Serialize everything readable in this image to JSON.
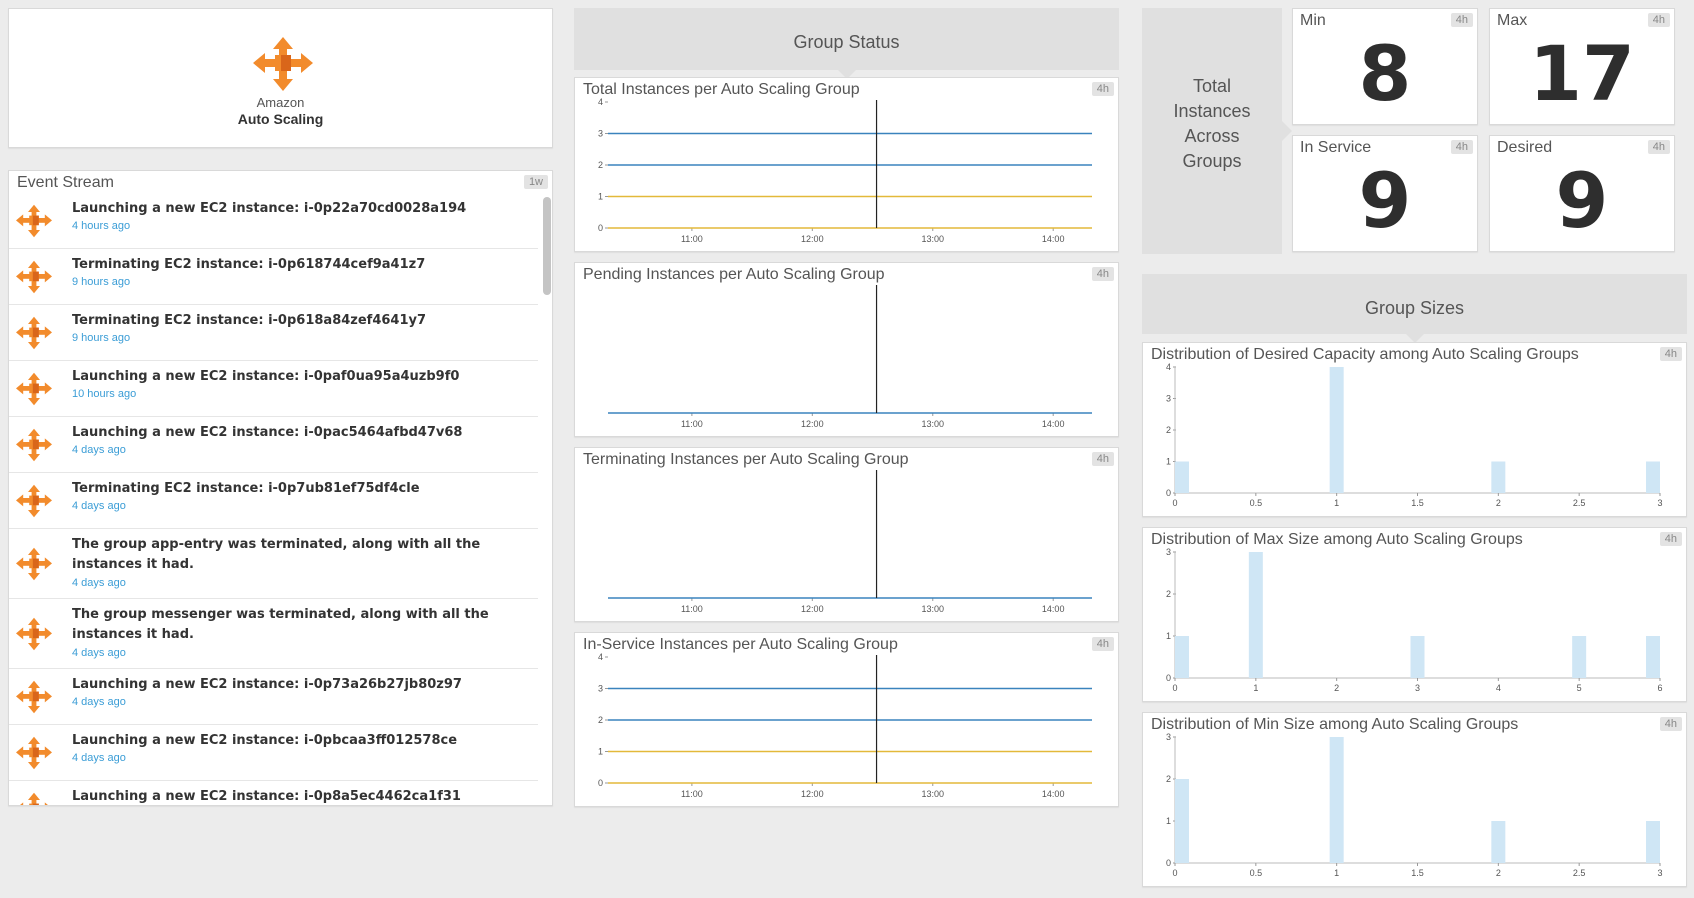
{
  "logo": {
    "line1": "Amazon",
    "line2": "Auto Scaling",
    "icon": "auto-scaling-arrows-icon"
  },
  "event_stream": {
    "title": "Event Stream",
    "badge": "1w",
    "events": [
      {
        "title": "Launching a new EC2 instance: i-0p22a70cd0028a194",
        "time": "4 hours ago"
      },
      {
        "title": "Terminating EC2 instance: i-0p618744cef9a41z7",
        "time": "9 hours ago"
      },
      {
        "title": "Terminating EC2 instance: i-0p618a84zef4641y7",
        "time": "9 hours ago"
      },
      {
        "title": "Launching a new EC2 instance: i-0paf0ua95a4uzb9f0",
        "time": "10 hours ago"
      },
      {
        "title": "Launching a new EC2 instance: i-0pac5464afbd47v68",
        "time": "4 days ago"
      },
      {
        "title": "Terminating EC2 instance: i-0p7ub81ef75df4cle",
        "time": "4 days ago"
      },
      {
        "title": "The group app-entry was terminated, along with all the instances it had.",
        "time": "4 days ago"
      },
      {
        "title": "The group messenger was terminated, along with all the instances it had.",
        "time": "4 days ago"
      },
      {
        "title": "Launching a new EC2 instance: i-0p73a26b27jb80z97",
        "time": "4 days ago"
      },
      {
        "title": "Launching a new EC2 instance: i-0pbcaa3ff012578ce",
        "time": "4 days ago"
      },
      {
        "title": "Launching a new EC2 instance: i-0p8a5ec4462ca1f31",
        "time": ""
      }
    ]
  },
  "group_status": {
    "title": "Group Status"
  },
  "total_instances": {
    "label": "Total Instances Across Groups",
    "stats": [
      {
        "label": "Min",
        "value": "8",
        "badge": "4h"
      },
      {
        "label": "Max",
        "value": "17",
        "badge": "4h"
      },
      {
        "label": "In Service",
        "value": "9",
        "badge": "4h"
      },
      {
        "label": "Desired",
        "value": "9",
        "badge": "4h"
      }
    ]
  },
  "group_sizes": {
    "title": "Group Sizes"
  },
  "colors": {
    "blue": "#3a83bd",
    "gold": "#e3b93a",
    "bar": "#cfe6f5",
    "cursor": "#222222",
    "link": "#3b9dd6"
  },
  "chart_data": [
    {
      "type": "line",
      "title": "Total Instances per Auto Scaling Group",
      "badge": "4h",
      "x_ticks": [
        "11:00",
        "12:00",
        "13:00",
        "14:00"
      ],
      "y_ticks": [
        "0",
        "1",
        "2",
        "3",
        "4"
      ],
      "ylim": [
        0,
        4
      ],
      "cursor": "12:32",
      "series": [
        {
          "values": [
            3,
            3,
            3,
            3
          ],
          "color": "#3a83bd"
        },
        {
          "values": [
            2,
            2,
            2,
            2
          ],
          "color": "#3a83bd"
        },
        {
          "values": [
            1,
            1,
            1,
            1
          ],
          "color": "#e3b93a"
        },
        {
          "values": [
            0,
            0,
            0,
            0
          ],
          "color": "#e3b93a"
        }
      ]
    },
    {
      "type": "line",
      "title": "Pending Instances per Auto Scaling Group",
      "badge": "4h",
      "x_ticks": [
        "11:00",
        "12:00",
        "13:00",
        "14:00"
      ],
      "y_ticks": [],
      "ylim": [
        0,
        4
      ],
      "cursor": "12:32",
      "series": [
        {
          "values": [
            0,
            0,
            0,
            0
          ],
          "color": "#3a83bd"
        }
      ]
    },
    {
      "type": "line",
      "title": "Terminating Instances per Auto Scaling Group",
      "badge": "4h",
      "x_ticks": [
        "11:00",
        "12:00",
        "13:00",
        "14:00"
      ],
      "y_ticks": [],
      "ylim": [
        0,
        4
      ],
      "cursor": "12:32",
      "series": [
        {
          "values": [
            0,
            0,
            0,
            0
          ],
          "color": "#3a83bd"
        }
      ]
    },
    {
      "type": "line",
      "title": "In-Service Instances per Auto Scaling Group",
      "badge": "4h",
      "x_ticks": [
        "11:00",
        "12:00",
        "13:00",
        "14:00"
      ],
      "y_ticks": [
        "0",
        "1",
        "2",
        "3",
        "4"
      ],
      "ylim": [
        0,
        4
      ],
      "cursor": "12:32",
      "series": [
        {
          "values": [
            3,
            3,
            3,
            3
          ],
          "color": "#3a83bd"
        },
        {
          "values": [
            2,
            2,
            2,
            2
          ],
          "color": "#3a83bd"
        },
        {
          "values": [
            1,
            1,
            1,
            1
          ],
          "color": "#e3b93a"
        },
        {
          "values": [
            0,
            0,
            0,
            0
          ],
          "color": "#e3b93a"
        }
      ]
    },
    {
      "type": "bar",
      "title": "Distribution of Desired Capacity among Auto Scaling Groups",
      "badge": "4h",
      "x_ticks": [
        "0",
        "0.5",
        "1",
        "1.5",
        "2",
        "2.5",
        "3"
      ],
      "xlim": [
        0,
        3
      ],
      "y_ticks": [
        "0",
        "1",
        "2",
        "3",
        "4"
      ],
      "ylim": [
        0,
        4
      ],
      "bars": [
        {
          "x": 0,
          "y": 1
        },
        {
          "x": 1,
          "y": 4
        },
        {
          "x": 2,
          "y": 1
        },
        {
          "x": 3,
          "y": 1
        }
      ]
    },
    {
      "type": "bar",
      "title": "Distribution of Max Size among Auto Scaling Groups",
      "badge": "4h",
      "x_ticks": [
        "0",
        "1",
        "2",
        "3",
        "4",
        "5",
        "6"
      ],
      "xlim": [
        0,
        6
      ],
      "y_ticks": [
        "0",
        "1",
        "2",
        "3"
      ],
      "ylim": [
        0,
        3
      ],
      "bars": [
        {
          "x": 0,
          "y": 1
        },
        {
          "x": 1,
          "y": 3
        },
        {
          "x": 3,
          "y": 1
        },
        {
          "x": 5,
          "y": 1
        },
        {
          "x": 6,
          "y": 1
        }
      ]
    },
    {
      "type": "bar",
      "title": "Distribution of Min Size among Auto Scaling Groups",
      "badge": "4h",
      "x_ticks": [
        "0",
        "0.5",
        "1",
        "1.5",
        "2",
        "2.5",
        "3"
      ],
      "xlim": [
        0,
        3
      ],
      "y_ticks": [
        "0",
        "1",
        "2",
        "3"
      ],
      "ylim": [
        0,
        3
      ],
      "bars": [
        {
          "x": 0,
          "y": 2
        },
        {
          "x": 1,
          "y": 3
        },
        {
          "x": 2,
          "y": 1
        },
        {
          "x": 3,
          "y": 1
        }
      ]
    }
  ]
}
